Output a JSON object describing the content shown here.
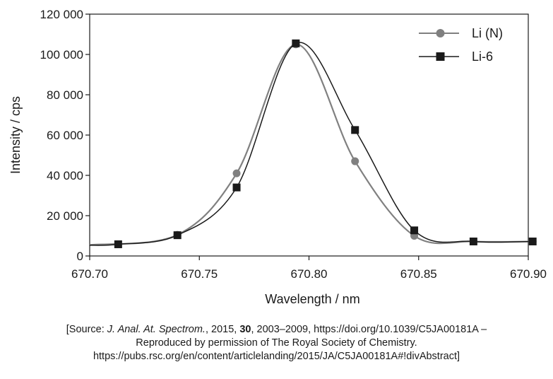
{
  "chart_data": {
    "type": "line",
    "xlabel": "Wavelength / nm",
    "ylabel": "Intensity / cps",
    "xlim": [
      670.7,
      670.9
    ],
    "ylim": [
      0,
      120000
    ],
    "x_ticks": [
      "670.70",
      "670.75",
      "670.80",
      "670.85",
      "670.90"
    ],
    "x_tick_values": [
      670.7,
      670.75,
      670.8,
      670.85,
      670.9
    ],
    "y_ticks": [
      "0",
      "20 000",
      "40 000",
      "60 000",
      "80 000",
      "100 000",
      "120 000"
    ],
    "y_tick_values": [
      0,
      20000,
      40000,
      60000,
      80000,
      100000,
      120000
    ],
    "legend_position": "top-right",
    "series": [
      {
        "name": "Li (N)",
        "marker": "circle",
        "color": "#808080",
        "x": [
          670.74,
          670.767,
          670.794,
          670.821,
          670.848,
          670.875,
          670.902
        ],
        "y": [
          10500,
          41000,
          105000,
          47000,
          10000,
          7200,
          7200
        ]
      },
      {
        "name": "Li-6",
        "marker": "square",
        "color": "#1a1a1a",
        "x": [
          670.713,
          670.74,
          670.767,
          670.794,
          670.821,
          670.848,
          670.875,
          670.902
        ],
        "y": [
          5800,
          10300,
          34000,
          105500,
          62500,
          12700,
          7200,
          7200
        ]
      }
    ]
  },
  "caption": {
    "line1_pre": "[Source: ",
    "line1_journal": "J. Anal. At. Spectrom.",
    "line1_mid": ", 2015, ",
    "line1_volume": "30",
    "line1_post": ", 2003–2009, https://doi.org/10.1039/C5JA00181A –",
    "line2": "Reproduced by permission of The Royal Society of Chemistry.",
    "line3": "https://pubs.rsc.org/en/content/articlelanding/2015/JA/C5JA00181A#!divAbstract]"
  }
}
